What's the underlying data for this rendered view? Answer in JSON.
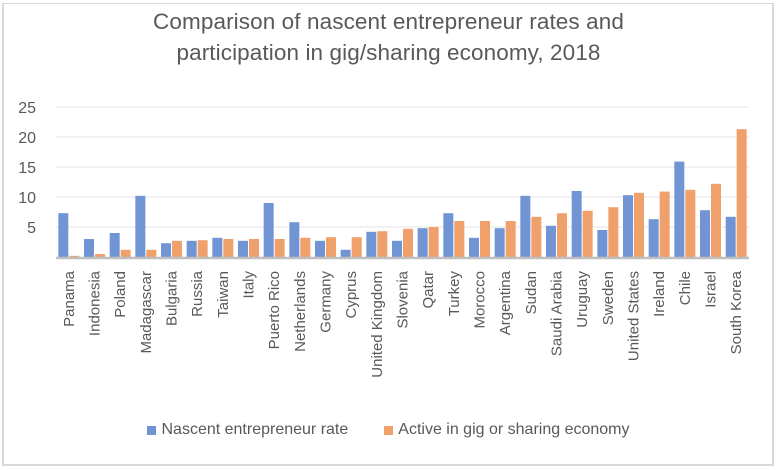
{
  "chart_data": {
    "type": "bar",
    "title": "Comparison of nascent entrepreneur rates and participation in gig/sharing economy, 2018",
    "title_lines": [
      "Comparison of nascent entrepreneur rates and",
      "participation in gig/sharing economy, 2018"
    ],
    "xlabel": "",
    "ylabel": "",
    "ylim": [
      0,
      25
    ],
    "yticks": [
      5,
      10,
      15,
      20,
      25
    ],
    "grid": true,
    "legend_position": "bottom",
    "categories": [
      "Panama",
      "Indonesia",
      "Poland",
      "Madagascar",
      "Bulgaria",
      "Russia",
      "Taiwan",
      "Italy",
      "Puerto Rico",
      "Netherlands",
      "Germany",
      "Cyprus",
      "United Kingdom",
      "Slovenia",
      "Qatar",
      "Turkey",
      "Morocco",
      "Argentina",
      "Sudan",
      "Saudi Arabia",
      "Uruguay",
      "Sweden",
      "United States",
      "Ireland",
      "Chile",
      "Israel",
      "South Korea"
    ],
    "series": [
      {
        "name": "Nascent entrepreneur rate",
        "color": "#7094d4",
        "values": [
          7.3,
          3.0,
          4.0,
          10.2,
          2.3,
          2.7,
          3.2,
          2.7,
          9.0,
          5.8,
          2.7,
          1.2,
          4.2,
          2.7,
          4.8,
          7.3,
          3.2,
          4.8,
          10.2,
          5.2,
          11.0,
          4.5,
          10.3,
          6.3,
          15.9,
          7.8,
          6.7
        ]
      },
      {
        "name": "Active in gig or sharing economy",
        "color": "#f0a06a",
        "values": [
          0.2,
          0.5,
          1.2,
          1.2,
          2.7,
          2.8,
          3.0,
          3.0,
          3.0,
          3.2,
          3.3,
          3.3,
          4.3,
          4.7,
          5.0,
          6.0,
          6.0,
          6.0,
          6.7,
          7.3,
          7.7,
          8.3,
          10.7,
          10.9,
          11.2,
          12.2,
          21.3
        ]
      }
    ]
  },
  "colors": {
    "text": "#595959",
    "gridline": "#eeeeee",
    "axis": "#bfbfbf",
    "frame": "#d9d9d9"
  }
}
